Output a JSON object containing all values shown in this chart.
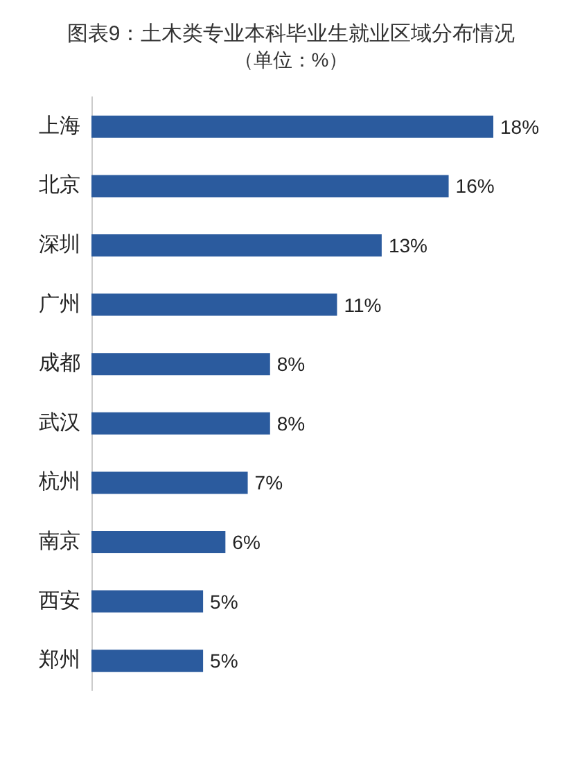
{
  "chart_data": {
    "type": "bar",
    "orientation": "horizontal",
    "title": "图表9：土木类专业本科毕业生就业区域分布情况",
    "subtitle": "（单位：%）",
    "categories": [
      "上海",
      "北京",
      "深圳",
      "广州",
      "成都",
      "武汉",
      "杭州",
      "南京",
      "西安",
      "郑州"
    ],
    "values": [
      18,
      16,
      13,
      11,
      8,
      8,
      7,
      6,
      5,
      5
    ],
    "value_labels": [
      "18%",
      "16%",
      "13%",
      "11%",
      "8%",
      "8%",
      "7%",
      "6%",
      "5%",
      "5%"
    ],
    "color": "#2b5b9e"
  }
}
